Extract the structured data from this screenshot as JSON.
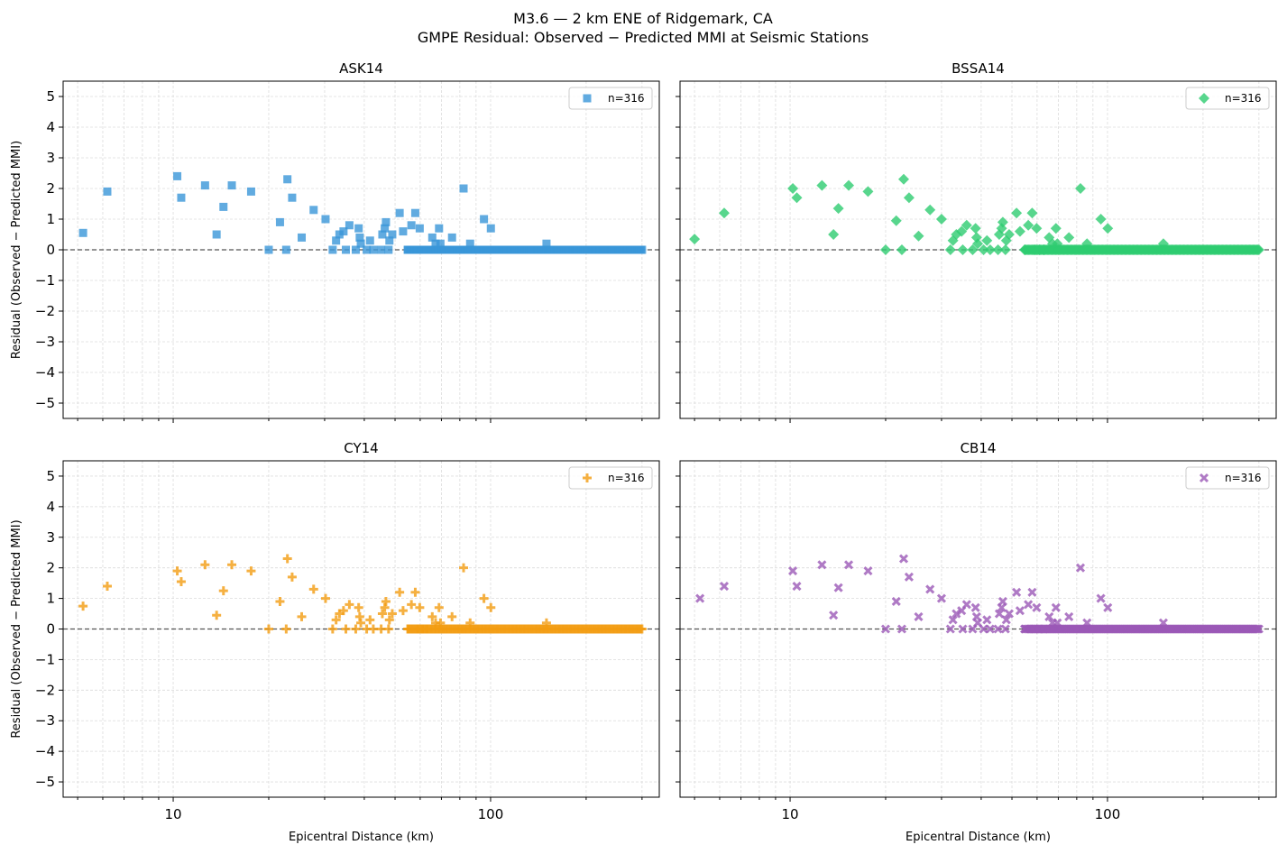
{
  "figure": {
    "title": "M3.6 — 2 km ENE of Ridgemark, CA",
    "subtitle": "GMPE Residual: Observed − Predicted MMI at Seismic Stations",
    "xlabel": "Epicentral Distance (km)",
    "ylabel": "Residual (Observed − Predicted MMI)"
  },
  "chart_data": [
    {
      "type": "scatter",
      "title": "ASK14",
      "marker": "square",
      "color": "#3a96d8",
      "legend": "n=316",
      "legend_loc": "upper right",
      "xscale": "log",
      "xlim": [
        4.5,
        340
      ],
      "ylim": [
        -5.5,
        5.5
      ],
      "xticks": [
        10,
        100
      ],
      "yticks": [
        5,
        4,
        3,
        2,
        1,
        0,
        -1,
        -2,
        -3,
        -4,
        -5
      ],
      "zero_line": 0,
      "grid": true,
      "points": [
        [
          5.2,
          0.55
        ],
        [
          6.2,
          1.9
        ],
        [
          10.3,
          2.4
        ],
        [
          10.6,
          1.7
        ],
        [
          12.6,
          2.1
        ],
        [
          13.7,
          0.5
        ],
        [
          14.4,
          1.4
        ],
        [
          15.3,
          2.1
        ],
        [
          17.6,
          1.9
        ],
        [
          20.0,
          0.0
        ],
        [
          21.7,
          0.9
        ],
        [
          22.7,
          0.0
        ],
        [
          22.9,
          2.3
        ],
        [
          23.7,
          1.7
        ],
        [
          25.4,
          0.4
        ],
        [
          27.7,
          1.3
        ],
        [
          30.2,
          1.0
        ],
        [
          31.8,
          0.0
        ],
        [
          32.6,
          0.3
        ],
        [
          33.4,
          0.5
        ],
        [
          34.4,
          0.6
        ],
        [
          35.0,
          0.0
        ],
        [
          35.9,
          0.8
        ],
        [
          37.6,
          0.0
        ],
        [
          38.4,
          0.7
        ],
        [
          38.7,
          0.4
        ],
        [
          39.0,
          0.2
        ],
        [
          40.7,
          0.0
        ],
        [
          41.7,
          0.3
        ],
        [
          42.7,
          0.0
        ],
        [
          45.2,
          0.0
        ],
        [
          45.6,
          0.5
        ],
        [
          46.4,
          0.7
        ],
        [
          46.8,
          0.9
        ],
        [
          47.7,
          0.0
        ],
        [
          48.0,
          0.3
        ],
        [
          49.0,
          0.5
        ],
        [
          51.7,
          1.2
        ],
        [
          53.0,
          0.6
        ],
        [
          54.8,
          0.0
        ],
        [
          56.3,
          0.8
        ],
        [
          57.9,
          1.2
        ],
        [
          58.9,
          0.0
        ],
        [
          59.8,
          0.7
        ],
        [
          61.0,
          0.0
        ],
        [
          63.0,
          0.0
        ],
        [
          64.5,
          0.0
        ],
        [
          65.5,
          0.4
        ],
        [
          66.0,
          0.0
        ],
        [
          67.1,
          0.2
        ],
        [
          68.8,
          0.7
        ],
        [
          69.5,
          0.2
        ],
        [
          71.0,
          0.0
        ],
        [
          72.0,
          0.0
        ],
        [
          74.0,
          0.0
        ],
        [
          75.6,
          0.4
        ],
        [
          77.0,
          0.0
        ],
        [
          80.0,
          0.0
        ],
        [
          82.2,
          2.0
        ],
        [
          85.2,
          0.0
        ],
        [
          86.2,
          0.2
        ],
        [
          90.0,
          0.0
        ],
        [
          95.3,
          1.0
        ],
        [
          100.2,
          0.7
        ],
        [
          105.0,
          0.0
        ],
        [
          150.0,
          0.2
        ]
      ],
      "zero_range": [
        55,
        300
      ]
    },
    {
      "type": "scatter",
      "title": "BSSA14",
      "marker": "diamond",
      "color": "#2ecc71",
      "legend": "n=316",
      "legend_loc": "upper right",
      "xscale": "log",
      "xlim": [
        4.5,
        340
      ],
      "ylim": [
        -5.5,
        5.5
      ],
      "xticks": [
        10,
        100
      ],
      "yticks": [
        5,
        4,
        3,
        2,
        1,
        0,
        -1,
        -2,
        -3,
        -4,
        -5
      ],
      "zero_line": 0,
      "grid": true,
      "points": [
        [
          5.0,
          0.35
        ],
        [
          6.2,
          1.2
        ],
        [
          10.2,
          2.0
        ],
        [
          10.5,
          1.7
        ],
        [
          12.6,
          2.1
        ],
        [
          13.7,
          0.5
        ],
        [
          14.2,
          1.35
        ],
        [
          15.3,
          2.1
        ],
        [
          17.6,
          1.9
        ],
        [
          20.0,
          0.0
        ],
        [
          21.6,
          0.95
        ],
        [
          22.5,
          0.0
        ],
        [
          22.8,
          2.3
        ],
        [
          23.7,
          1.7
        ],
        [
          25.4,
          0.45
        ],
        [
          27.6,
          1.3
        ],
        [
          30.0,
          1.0
        ],
        [
          32.0,
          0.0
        ],
        [
          32.6,
          0.3
        ],
        [
          33.4,
          0.5
        ],
        [
          34.7,
          0.6
        ],
        [
          35.0,
          0.0
        ],
        [
          36.0,
          0.8
        ],
        [
          37.6,
          0.0
        ],
        [
          38.4,
          0.7
        ],
        [
          38.7,
          0.4
        ],
        [
          39.0,
          0.2
        ],
        [
          40.7,
          0.0
        ],
        [
          41.7,
          0.3
        ],
        [
          42.7,
          0.0
        ],
        [
          45.2,
          0.0
        ],
        [
          45.6,
          0.5
        ],
        [
          46.4,
          0.7
        ],
        [
          46.8,
          0.9
        ],
        [
          47.7,
          0.0
        ],
        [
          48.0,
          0.3
        ],
        [
          49.0,
          0.5
        ],
        [
          51.7,
          1.2
        ],
        [
          53.0,
          0.6
        ],
        [
          54.8,
          0.0
        ],
        [
          56.3,
          0.8
        ],
        [
          57.9,
          1.2
        ],
        [
          58.9,
          0.0
        ],
        [
          59.8,
          0.7
        ],
        [
          61.0,
          0.0
        ],
        [
          63.0,
          0.0
        ],
        [
          65.5,
          0.4
        ],
        [
          67.1,
          0.2
        ],
        [
          68.8,
          0.7
        ],
        [
          69.5,
          0.2
        ],
        [
          75.6,
          0.4
        ],
        [
          82.2,
          2.0
        ],
        [
          86.2,
          0.2
        ],
        [
          95.3,
          1.0
        ],
        [
          100.2,
          0.7
        ],
        [
          150.0,
          0.2
        ]
      ],
      "zero_range": [
        55,
        300
      ]
    },
    {
      "type": "scatter",
      "title": "CY14",
      "marker": "plus",
      "color": "#f39c12",
      "legend": "n=316",
      "legend_loc": "upper right",
      "xscale": "log",
      "xlim": [
        4.5,
        340
      ],
      "ylim": [
        -5.5,
        5.5
      ],
      "xticks": [
        10,
        100
      ],
      "yticks": [
        5,
        4,
        3,
        2,
        1,
        0,
        -1,
        -2,
        -3,
        -4,
        -5
      ],
      "zero_line": 0,
      "grid": true,
      "points": [
        [
          5.2,
          0.75
        ],
        [
          6.2,
          1.4
        ],
        [
          10.3,
          1.9
        ],
        [
          10.6,
          1.55
        ],
        [
          12.6,
          2.1
        ],
        [
          13.7,
          0.45
        ],
        [
          14.4,
          1.25
        ],
        [
          15.3,
          2.1
        ],
        [
          17.6,
          1.9
        ],
        [
          20.0,
          0.0
        ],
        [
          21.7,
          0.9
        ],
        [
          22.7,
          0.0
        ],
        [
          22.9,
          2.3
        ],
        [
          23.7,
          1.7
        ],
        [
          25.4,
          0.4
        ],
        [
          27.7,
          1.3
        ],
        [
          30.2,
          1.0
        ],
        [
          31.8,
          0.0
        ],
        [
          32.6,
          0.3
        ],
        [
          33.4,
          0.5
        ],
        [
          34.4,
          0.6
        ],
        [
          35.0,
          0.0
        ],
        [
          35.9,
          0.8
        ],
        [
          37.6,
          0.0
        ],
        [
          38.4,
          0.7
        ],
        [
          38.7,
          0.4
        ],
        [
          39.0,
          0.2
        ],
        [
          40.7,
          0.0
        ],
        [
          41.7,
          0.3
        ],
        [
          42.7,
          0.0
        ],
        [
          45.2,
          0.0
        ],
        [
          45.6,
          0.5
        ],
        [
          46.4,
          0.7
        ],
        [
          46.8,
          0.9
        ],
        [
          47.7,
          0.0
        ],
        [
          48.0,
          0.3
        ],
        [
          49.0,
          0.5
        ],
        [
          51.7,
          1.2
        ],
        [
          53.0,
          0.6
        ],
        [
          54.8,
          0.0
        ],
        [
          56.3,
          0.8
        ],
        [
          57.9,
          1.2
        ],
        [
          58.9,
          0.0
        ],
        [
          59.8,
          0.7
        ],
        [
          61.0,
          0.0
        ],
        [
          63.0,
          0.0
        ],
        [
          65.5,
          0.4
        ],
        [
          67.1,
          0.2
        ],
        [
          68.8,
          0.7
        ],
        [
          69.5,
          0.2
        ],
        [
          75.6,
          0.4
        ],
        [
          82.2,
          2.0
        ],
        [
          86.2,
          0.2
        ],
        [
          95.3,
          1.0
        ],
        [
          100.2,
          0.7
        ],
        [
          150.0,
          0.2
        ]
      ],
      "zero_range": [
        55,
        300
      ]
    },
    {
      "type": "scatter",
      "title": "CB14",
      "marker": "x",
      "color": "#9b59b6",
      "legend": "n=316",
      "legend_loc": "upper right",
      "xscale": "log",
      "xlim": [
        4.5,
        340
      ],
      "ylim": [
        -5.5,
        5.5
      ],
      "xticks": [
        10,
        100
      ],
      "yticks": [
        5,
        4,
        3,
        2,
        1,
        0,
        -1,
        -2,
        -3,
        -4,
        -5
      ],
      "zero_line": 0,
      "grid": true,
      "points": [
        [
          5.2,
          1.0
        ],
        [
          6.2,
          1.4
        ],
        [
          10.2,
          1.9
        ],
        [
          10.5,
          1.4
        ],
        [
          12.6,
          2.1
        ],
        [
          13.7,
          0.45
        ],
        [
          14.2,
          1.35
        ],
        [
          15.3,
          2.1
        ],
        [
          17.6,
          1.9
        ],
        [
          20.0,
          0.0
        ],
        [
          21.6,
          0.9
        ],
        [
          22.5,
          0.0
        ],
        [
          22.8,
          2.3
        ],
        [
          23.7,
          1.7
        ],
        [
          25.4,
          0.4
        ],
        [
          27.6,
          1.3
        ],
        [
          30.0,
          1.0
        ],
        [
          32.0,
          0.0
        ],
        [
          32.6,
          0.3
        ],
        [
          33.4,
          0.5
        ],
        [
          34.7,
          0.6
        ],
        [
          35.0,
          0.0
        ],
        [
          36.0,
          0.8
        ],
        [
          37.6,
          0.0
        ],
        [
          38.4,
          0.7
        ],
        [
          38.7,
          0.4
        ],
        [
          39.0,
          0.2
        ],
        [
          40.7,
          0.0
        ],
        [
          41.7,
          0.3
        ],
        [
          42.7,
          0.0
        ],
        [
          45.2,
          0.0
        ],
        [
          45.6,
          0.5
        ],
        [
          46.4,
          0.7
        ],
        [
          46.8,
          0.9
        ],
        [
          47.7,
          0.0
        ],
        [
          48.0,
          0.3
        ],
        [
          49.0,
          0.5
        ],
        [
          51.7,
          1.2
        ],
        [
          53.0,
          0.6
        ],
        [
          54.8,
          0.0
        ],
        [
          56.3,
          0.8
        ],
        [
          57.9,
          1.2
        ],
        [
          58.9,
          0.0
        ],
        [
          59.8,
          0.7
        ],
        [
          61.0,
          0.0
        ],
        [
          63.0,
          0.0
        ],
        [
          65.5,
          0.4
        ],
        [
          67.1,
          0.2
        ],
        [
          68.8,
          0.7
        ],
        [
          69.5,
          0.2
        ],
        [
          75.6,
          0.4
        ],
        [
          82.2,
          2.0
        ],
        [
          86.2,
          0.2
        ],
        [
          95.3,
          1.0
        ],
        [
          100.2,
          0.7
        ],
        [
          150.0,
          0.2
        ]
      ],
      "zero_range": [
        55,
        300
      ]
    }
  ]
}
